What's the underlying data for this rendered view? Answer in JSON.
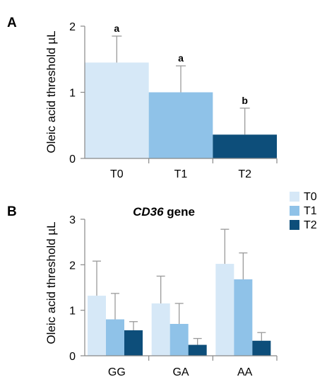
{
  "colors": {
    "T0": "#d6e8f7",
    "T1": "#8fc2e8",
    "T2": "#0d4e7a",
    "axis": "#888888",
    "error": "#9a9a9a"
  },
  "chart_data": [
    {
      "panel_label": "A",
      "type": "bar",
      "title": "",
      "xlabel": "",
      "ylabel": "Oleic acid threshold µL",
      "ylim": [
        0,
        2
      ],
      "yticks": [
        "0",
        "1",
        "2"
      ],
      "categories": [
        "T0",
        "T1",
        "T2"
      ],
      "values": [
        1.45,
        1.0,
        0.36
      ],
      "errors": [
        0.4,
        0.4,
        0.4
      ],
      "significance": [
        "a",
        "a",
        "b"
      ],
      "grid": false
    },
    {
      "panel_label": "B",
      "type": "bar",
      "title_italic": "CD36",
      "title_rest": " gene",
      "xlabel": "",
      "ylabel": "Oleic acid threshold µL",
      "ylim": [
        0,
        3
      ],
      "yticks": [
        "0",
        "1",
        "2",
        "3"
      ],
      "categories": [
        "GG",
        "GA",
        "AA"
      ],
      "series": [
        {
          "name": "T0",
          "values": [
            1.32,
            1.15,
            2.02
          ],
          "errors": [
            0.76,
            0.6,
            0.76
          ]
        },
        {
          "name": "T1",
          "values": [
            0.8,
            0.7,
            1.68
          ],
          "errors": [
            0.57,
            0.45,
            0.58
          ]
        },
        {
          "name": "T2",
          "values": [
            0.56,
            0.24,
            0.33
          ],
          "errors": [
            0.19,
            0.14,
            0.18
          ]
        }
      ],
      "legend": [
        "T0",
        "T1",
        "T2"
      ],
      "legend_position": "top-right",
      "grid": false
    }
  ]
}
